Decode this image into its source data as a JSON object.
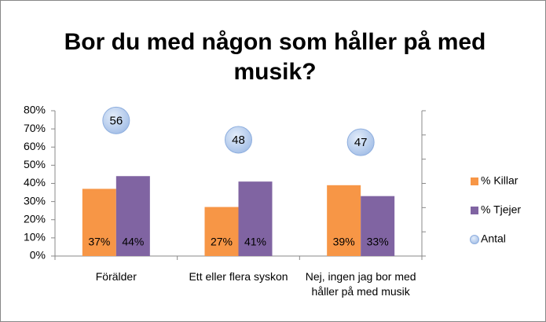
{
  "chart_data": {
    "type": "bar",
    "title": "Bor du med någon som håller på med musik?",
    "categories": [
      "Förälder",
      "Ett eller flera syskon",
      "Nej, ingen jag bor med håller på med musik"
    ],
    "series": [
      {
        "name": "% Killar",
        "color": "#f79646",
        "values": [
          37,
          27,
          39
        ],
        "value_labels": [
          "37%",
          "27%",
          "39%"
        ]
      },
      {
        "name": "% Tjejer",
        "color": "#8064a2",
        "values": [
          44,
          41,
          33
        ],
        "value_labels": [
          "44%",
          "41%",
          "33%"
        ]
      },
      {
        "name": "Antal",
        "color": "#a7c1e8",
        "type": "bubble",
        "axis": "y2",
        "values": [
          56,
          48,
          47
        ]
      }
    ],
    "ylim": [
      0,
      80
    ],
    "yticks": [
      {
        "value": 0,
        "label": "0%"
      },
      {
        "value": 10,
        "label": "10%"
      },
      {
        "value": 20,
        "label": "20%"
      },
      {
        "value": 30,
        "label": "30%"
      },
      {
        "value": 40,
        "label": "40%"
      },
      {
        "value": 50,
        "label": "50%"
      },
      {
        "value": 60,
        "label": "60%"
      },
      {
        "value": 70,
        "label": "70%"
      },
      {
        "value": 80,
        "label": "80%"
      }
    ],
    "y2lim": [
      0,
      60
    ],
    "y2ticks": [
      0,
      10,
      20,
      30,
      40,
      50,
      60
    ],
    "legend": "right",
    "grid": false
  }
}
